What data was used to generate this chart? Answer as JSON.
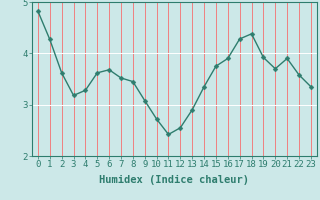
{
  "x": [
    0,
    1,
    2,
    3,
    4,
    5,
    6,
    7,
    8,
    9,
    10,
    11,
    12,
    13,
    14,
    15,
    16,
    17,
    18,
    19,
    20,
    21,
    22,
    23
  ],
  "y": [
    4.82,
    4.27,
    3.62,
    3.18,
    3.28,
    3.62,
    3.68,
    3.52,
    3.45,
    3.08,
    2.72,
    2.42,
    2.55,
    2.9,
    3.35,
    3.75,
    3.9,
    4.28,
    4.38,
    3.92,
    3.7,
    3.9,
    3.58,
    3.35
  ],
  "line_color": "#2e7d6e",
  "marker": "D",
  "marker_size": 2.5,
  "line_width": 1.0,
  "bg_color": "#cce8e8",
  "plot_bg_color": "#cce8e8",
  "grid_color_v": "#f08080",
  "grid_color_h": "#ffffff",
  "xlabel": "Humidex (Indice chaleur)",
  "ylim": [
    2.0,
    5.0
  ],
  "xlim": [
    -0.5,
    23.5
  ],
  "yticks": [
    2,
    3,
    4,
    5
  ],
  "xticks": [
    0,
    1,
    2,
    3,
    4,
    5,
    6,
    7,
    8,
    9,
    10,
    11,
    12,
    13,
    14,
    15,
    16,
    17,
    18,
    19,
    20,
    21,
    22,
    23
  ],
  "tick_color": "#2e7d6e",
  "label_color": "#2e7d6e",
  "xlabel_fontsize": 7.5,
  "tick_fontsize": 6.5
}
